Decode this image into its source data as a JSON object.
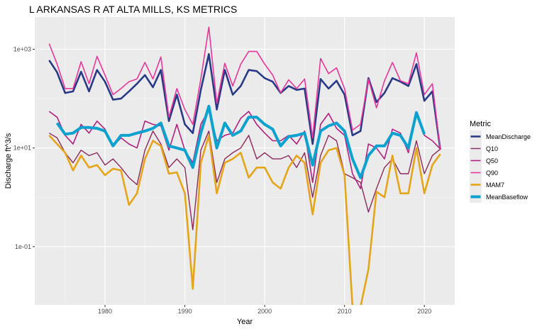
{
  "chart_data": {
    "type": "line",
    "title": "L ARKANSAS R AT ALTA MILLS, KS  METRICS",
    "xlabel": "Year",
    "ylabel": "Discharge ft^3/s",
    "y_scale": "log10",
    "xlim": [
      1971.2,
      2023.8
    ],
    "ylim": [
      0.0066,
      4500
    ],
    "x_ticks": [
      1980,
      1990,
      2000,
      2010,
      2020
    ],
    "x_tick_labels": [
      "1980",
      "1990",
      "2000",
      "2010",
      "2020"
    ],
    "y_ticks": [
      0.1,
      10,
      1000
    ],
    "y_tick_labels": [
      "1e-01",
      "1e+01",
      "1e+03"
    ],
    "grid": true,
    "legend": {
      "title": "Metric",
      "position": "right"
    },
    "series": [
      {
        "name": "MeanDischarge",
        "color": "#283a86",
        "width": 2.6,
        "x": [
          1973,
          1974,
          1975,
          1976,
          1977,
          1978,
          1979,
          1980,
          1981,
          1982,
          1983,
          1984,
          1985,
          1986,
          1987,
          1988,
          1989,
          1990,
          1991,
          1992,
          1993,
          1994,
          1995,
          1996,
          1997,
          1998,
          1999,
          2000,
          2001,
          2002,
          2003,
          2004,
          2005,
          2006,
          2007,
          2008,
          2009,
          2010,
          2011,
          2012,
          2013,
          2014,
          2015,
          2016,
          2017,
          2018,
          2019,
          2020,
          2021,
          2022
        ],
        "values": [
          600,
          340,
          130,
          140,
          350,
          140,
          380,
          220,
          95,
          100,
          140,
          200,
          300,
          170,
          380,
          35,
          120,
          30,
          20,
          150,
          800,
          60,
          380,
          120,
          180,
          380,
          360,
          260,
          220,
          130,
          180,
          150,
          160,
          12,
          250,
          160,
          230,
          120,
          18,
          22,
          260,
          85,
          130,
          260,
          220,
          180,
          500,
          90,
          140,
          9.2
        ]
      },
      {
        "name": "Q10",
        "color": "#8b2a5a",
        "width": 1.4,
        "x": [
          1973,
          1974,
          1975,
          1976,
          1977,
          1978,
          1979,
          1980,
          1981,
          1982,
          1983,
          1984,
          1985,
          1986,
          1987,
          1988,
          1989,
          1990,
          1991,
          1992,
          1993,
          1994,
          1995,
          1996,
          1997,
          1998,
          1999,
          2000,
          2001,
          2002,
          2003,
          2004,
          2005,
          2006,
          2007,
          2008,
          2009,
          2010,
          2011,
          2012,
          2013,
          2014,
          2015,
          2016,
          2017,
          2018,
          2019,
          2020,
          2021,
          2022
        ],
        "values": [
          20,
          16,
          8,
          5,
          9,
          7,
          8,
          4.5,
          6,
          4,
          2.5,
          1.8,
          9,
          22,
          12,
          4,
          6,
          4,
          0.22,
          9,
          22,
          2,
          6,
          8,
          10,
          18,
          6,
          8,
          6,
          6,
          7,
          4,
          8,
          1,
          7,
          18,
          14,
          3,
          2.5,
          2,
          0.5,
          1.5,
          4,
          6,
          3,
          3,
          14,
          3,
          7,
          9.5
        ]
      },
      {
        "name": "Q50",
        "color": "#b0207e",
        "width": 1.6,
        "x": [
          1973,
          1974,
          1975,
          1976,
          1977,
          1978,
          1979,
          1980,
          1981,
          1982,
          1983,
          1984,
          1985,
          1986,
          1987,
          1988,
          1989,
          1990,
          1991,
          1992,
          1993,
          1994,
          1995,
          1996,
          1997,
          1998,
          1999,
          2000,
          2001,
          2002,
          2003,
          2004,
          2005,
          2006,
          2007,
          2008,
          2009,
          2010,
          2011,
          2012,
          2013,
          2014,
          2015,
          2016,
          2017,
          2018,
          2019,
          2020,
          2021,
          2022
        ],
        "values": [
          55,
          42,
          18,
          12,
          30,
          20,
          35,
          24,
          11,
          16,
          12,
          10,
          35,
          30,
          28,
          9,
          30,
          9,
          5,
          30,
          60,
          14,
          18,
          20,
          40,
          55,
          30,
          20,
          14,
          14,
          18,
          12,
          22,
          2,
          30,
          50,
          25,
          18,
          3,
          1.5,
          12,
          10,
          6,
          24,
          20,
          8,
          50,
          18,
          14,
          9.5
        ]
      },
      {
        "name": "Q90",
        "color": "#e7379a",
        "width": 1.6,
        "x": [
          1973,
          1974,
          1975,
          1976,
          1977,
          1978,
          1979,
          1980,
          1981,
          1982,
          1983,
          1984,
          1985,
          1986,
          1987,
          1988,
          1989,
          1990,
          1991,
          1992,
          1993,
          1994,
          1995,
          1996,
          1997,
          1998,
          1999,
          2000,
          2001,
          2002,
          2003,
          2004,
          2005,
          2006,
          2007,
          2008,
          2009,
          2010,
          2011,
          2012,
          2013,
          2014,
          2015,
          2016,
          2017,
          2018,
          2019,
          2020,
          2021,
          2022
        ],
        "values": [
          1300,
          500,
          160,
          160,
          560,
          200,
          720,
          300,
          120,
          160,
          220,
          250,
          540,
          250,
          700,
          42,
          160,
          60,
          30,
          250,
          2800,
          80,
          520,
          180,
          500,
          900,
          900,
          500,
          300,
          130,
          240,
          160,
          250,
          16,
          650,
          320,
          420,
          160,
          23,
          30,
          250,
          65,
          230,
          540,
          230,
          200,
          850,
          120,
          200,
          9.2
        ]
      },
      {
        "name": "MAM7",
        "color": "#e5a51b",
        "width": 2.6,
        "x": [
          1973,
          1974,
          1975,
          1976,
          1977,
          1978,
          1979,
          1980,
          1981,
          1982,
          1983,
          1984,
          1985,
          1986,
          1987,
          1988,
          1989,
          1990,
          1991,
          1992,
          1993,
          1994,
          1995,
          1996,
          1997,
          1998,
          1999,
          2000,
          2001,
          2002,
          2003,
          2004,
          2005,
          2006,
          2007,
          2008,
          2009,
          2010,
          2011,
          2012,
          2013,
          2014,
          2015,
          2016,
          2017,
          2018,
          2019,
          2020,
          2021,
          2022
        ],
        "values": [
          18,
          12,
          8,
          3.5,
          7,
          4,
          4.5,
          2.8,
          3.8,
          3.5,
          0.7,
          1.2,
          6,
          14,
          11,
          3,
          3.2,
          1.2,
          0.014,
          5,
          18,
          1.2,
          5,
          6,
          8,
          2.5,
          4,
          4,
          2,
          1.5,
          4,
          7,
          5,
          0.45,
          5,
          9,
          10,
          2.8,
          0.006,
          0.006,
          0.035,
          1.3,
          1,
          7,
          1.2,
          1.2,
          10,
          1.2,
          4.5,
          7.5
        ]
      },
      {
        "name": "MeanBaseflow",
        "color": "#0ca2cf",
        "width": 4,
        "x": [
          1974,
          1975,
          1976,
          1977,
          1978,
          1979,
          1980,
          1981,
          1982,
          1983,
          1984,
          1985,
          1986,
          1987,
          1988,
          1989,
          1990,
          1991,
          1992,
          1993,
          1994,
          1995,
          1996,
          1997,
          1998,
          1999,
          2000,
          2001,
          2002,
          2003,
          2004,
          2005,
          2006,
          2007,
          2008,
          2009,
          2010,
          2011,
          2012,
          2013,
          2014,
          2015,
          2016,
          2017,
          2018,
          2019,
          2020
        ],
        "values": [
          32,
          19,
          20,
          26,
          26,
          25,
          22,
          11,
          18,
          18,
          20,
          22,
          25,
          32,
          11,
          10,
          9,
          4,
          20,
          70,
          10,
          32,
          18,
          22,
          42,
          42,
          30,
          24,
          11,
          17,
          18,
          20,
          4.5,
          22,
          28,
          32,
          22,
          6,
          2.5,
          7,
          11,
          11,
          20,
          18,
          10,
          52,
          19
        ]
      }
    ]
  }
}
